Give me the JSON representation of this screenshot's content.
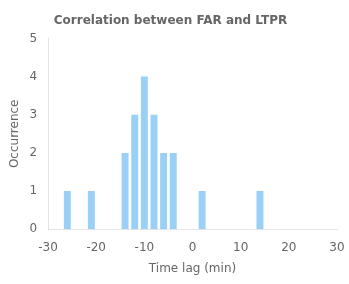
{
  "chart_data": {
    "type": "bar",
    "title": "Correlation between FAR and LTPR",
    "xlabel": "Time lag (min)",
    "ylabel": "Occurrence",
    "x": [
      -26,
      -21,
      -14,
      -12,
      -10,
      -8,
      -6,
      -4,
      2,
      14
    ],
    "values": [
      1,
      1,
      2,
      3,
      4,
      3,
      2,
      2,
      1,
      1
    ],
    "xlim": [
      -30,
      30
    ],
    "ylim": [
      0,
      5
    ],
    "xticks": [
      -30,
      -20,
      -10,
      0,
      10,
      20,
      30
    ],
    "yticks": [
      0,
      1,
      2,
      3,
      4,
      5
    ],
    "grid": false
  }
}
